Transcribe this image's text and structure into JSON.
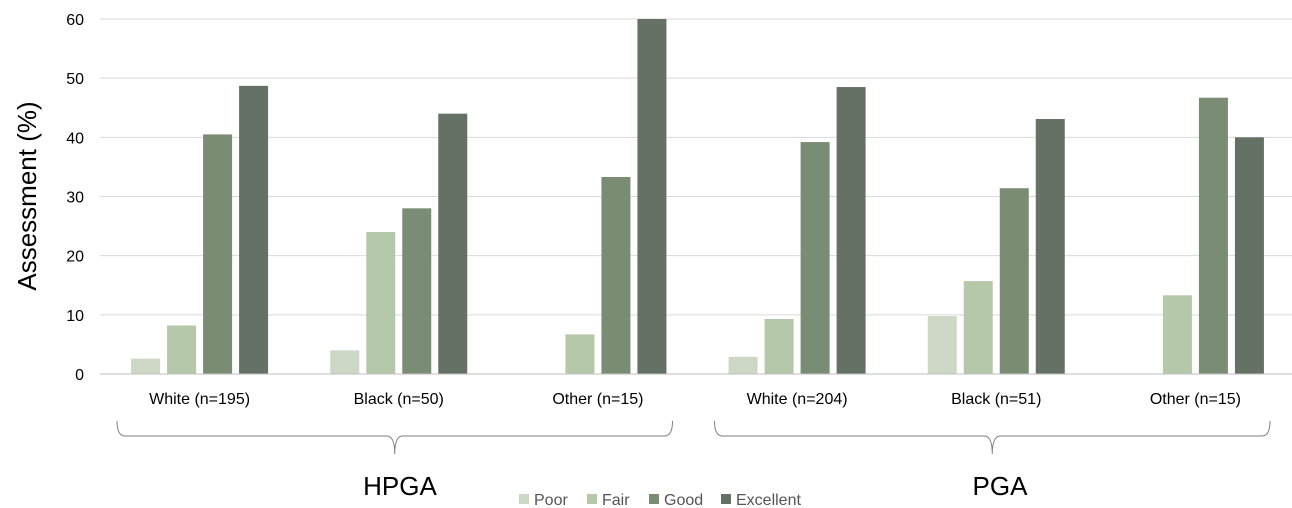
{
  "chart_data": {
    "type": "bar",
    "ylabel": "Assessment (%)",
    "ylim": [
      0,
      60
    ],
    "yticks": [
      0,
      10,
      20,
      30,
      40,
      50,
      60
    ],
    "grid": true,
    "legend_position": "bottom",
    "categories": [
      "White (n=195)",
      "Black (n=50)",
      "Other (n=15)",
      "White (n=204)",
      "Black (n=51)",
      "Other (n=15)"
    ],
    "groups": [
      {
        "label": "HPGA",
        "categories": [
          "White (n=195)",
          "Black (n=50)",
          "Other (n=15)"
        ]
      },
      {
        "label": "PGA",
        "categories": [
          "White (n=204)",
          "Black (n=51)",
          "Other (n=15)"
        ]
      }
    ],
    "series": [
      {
        "name": "Poor",
        "color": "#cdd7c6",
        "values": [
          2.6,
          4.0,
          0,
          2.9,
          9.8,
          0
        ]
      },
      {
        "name": "Fair",
        "color": "#b6c8aa",
        "values": [
          8.2,
          24.0,
          6.7,
          9.3,
          15.7,
          13.3
        ]
      },
      {
        "name": "Good",
        "color": "#7b8c75",
        "values": [
          40.5,
          28.0,
          33.3,
          39.2,
          31.4,
          46.7
        ]
      },
      {
        "name": "Excellent",
        "color": "#667166",
        "values": [
          48.7,
          44.0,
          60.0,
          48.5,
          43.1,
          40.0
        ]
      }
    ]
  }
}
